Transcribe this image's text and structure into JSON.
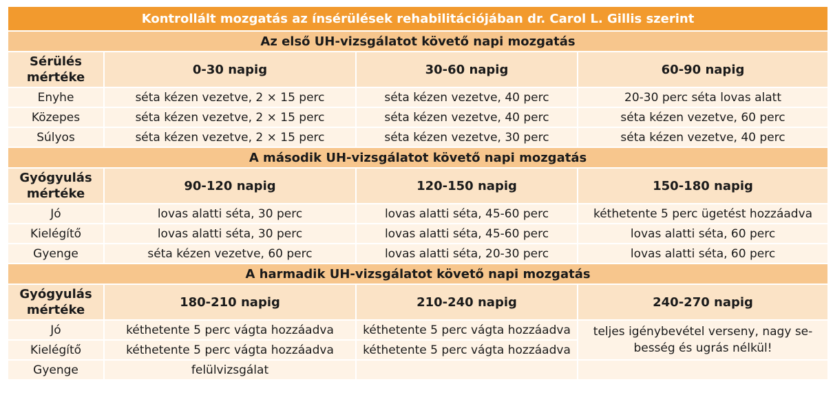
{
  "title": "Kontrollált mozgatás az ínsérülések rehabilitációjában dr. Carol L. Gillis szerint",
  "sections": [
    {
      "heading": "Az első UH-vizsgálatot követő napi mozgatás",
      "label_header": [
        "Sérülés",
        "mértéke"
      ],
      "columns": [
        "0-30 napig",
        "30-60 napig",
        "60-90 napig"
      ],
      "rows": [
        {
          "label": "Enyhe",
          "cells": [
            "séta kézen vezetve, 2 × 15 perc",
            "séta kézen vezetve, 40 perc",
            "20-30 perc séta lovas alatt"
          ]
        },
        {
          "label": "Közepes",
          "cells": [
            "séta kézen vezetve, 2 × 15 perc",
            "séta kézen vezetve, 40 perc",
            "séta kézen vezetve, 60 perc"
          ]
        },
        {
          "label": "Súlyos",
          "cells": [
            "séta kézen vezetve, 2 × 15 perc",
            "séta kézen vezetve, 30 perc",
            "séta kézen vezetve, 40 perc"
          ]
        }
      ]
    },
    {
      "heading": "A második UH-vizsgálatot követő napi mozgatás",
      "label_header": [
        "Gyógyulás",
        "mértéke"
      ],
      "columns": [
        "90-120 napig",
        "120-150 napig",
        "150-180 napig"
      ],
      "rows": [
        {
          "label": "Jó",
          "cells": [
            "lovas alatti séta, 30 perc",
            "lovas alatti séta, 45-60 perc",
            "kéthetente 5 perc ügetést hozzáadva"
          ]
        },
        {
          "label": "Kielégítő",
          "cells": [
            "lovas alatti séta, 30 perc",
            "lovas alatti séta, 45-60 perc",
            "lovas alatti séta, 60 perc"
          ]
        },
        {
          "label": "Gyenge",
          "cells": [
            "séta kézen vezetve, 60 perc",
            "lovas alatti séta, 20-30 perc",
            "lovas alatti séta, 60 perc"
          ]
        }
      ]
    },
    {
      "heading": "A harmadik UH-vizsgálatot követő napi mozgatás",
      "label_header": [
        "Gyógyulás",
        "mértéke"
      ],
      "columns": [
        "180-210 napig",
        "210-240 napig",
        "240-270 napig"
      ],
      "rows": [
        {
          "label": "Jó",
          "cells": [
            "kéthetente 5 perc vágta hozzáadva",
            "kéthetente 5 perc vágta hozzáadva"
          ]
        },
        {
          "label": "Kielégítő",
          "cells": [
            "kéthetente 5 perc vágta hozzáadva",
            "kéthetente 5 perc vágta hozzáadva"
          ]
        },
        {
          "label": "Gyenge",
          "cells": [
            "felülvizsgálat",
            ""
          ]
        }
      ],
      "merged_cell": [
        "teljes igénybevétel verseny, nagy se-",
        "besség és ugrás nélkül!"
      ]
    }
  ],
  "colors": {
    "title_bg": "#f29a2e",
    "section_bg": "#f7c68d",
    "header_bg": "#fbe3c6",
    "cell_bg": "#fef3e6"
  }
}
